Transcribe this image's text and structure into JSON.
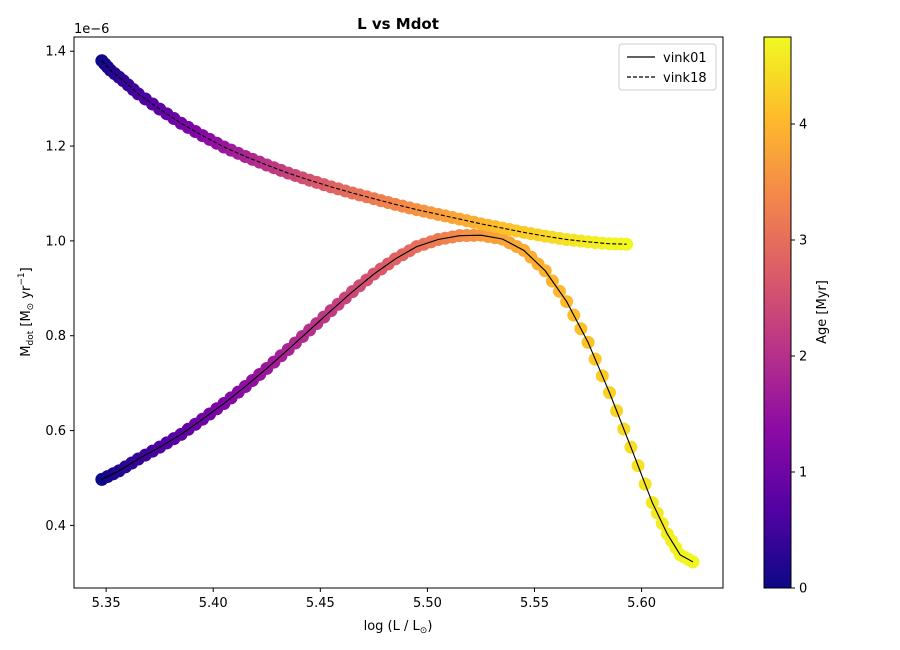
{
  "chart_data": {
    "type": "scatter",
    "title": "L vs Mdot",
    "xlabel": {
      "main": "log (L / L",
      "sub": "⊙",
      "tail": ")"
    },
    "ylabel": {
      "main": "M",
      "sub": "dot",
      "mid": " [M",
      "sub2": "⊙",
      "unit": " yr",
      "sup": "−1",
      "end": "]"
    },
    "y_offset_label": "1e−6",
    "xlim": [
      5.335,
      5.638
    ],
    "ylim": [
      0.268,
      1.43
    ],
    "xticks": [
      5.35,
      5.4,
      5.45,
      5.5,
      5.55,
      5.6
    ],
    "xtick_labels": [
      "5.35",
      "5.40",
      "5.45",
      "5.50",
      "5.55",
      "5.60"
    ],
    "yticks": [
      0.4,
      0.6,
      0.8,
      1.0,
      1.2,
      1.4
    ],
    "ytick_labels": [
      "0.4",
      "0.6",
      "0.8",
      "1.0",
      "1.2",
      "1.4"
    ],
    "legend": {
      "position": "top-right",
      "entries": [
        {
          "name": "vink01",
          "style": "solid"
        },
        {
          "name": "vink18",
          "style": "dashed"
        }
      ]
    },
    "colorbar": {
      "label": "Age [Myr]",
      "min": 0,
      "max": 4.75,
      "ticks": [
        0,
        1,
        2,
        3,
        4
      ],
      "tick_labels": [
        "0",
        "1",
        "2",
        "3",
        "4"
      ],
      "colormap": [
        "#0d0887",
        "#5302a3",
        "#8b0aa5",
        "#b83289",
        "#db5c68",
        "#f48849",
        "#febc2a",
        "#f0f921"
      ]
    },
    "series": [
      {
        "name": "vink01",
        "line_color": "#000000",
        "x": [
          5.348,
          5.356,
          5.365,
          5.375,
          5.385,
          5.395,
          5.405,
          5.415,
          5.425,
          5.435,
          5.445,
          5.455,
          5.465,
          5.475,
          5.485,
          5.495,
          5.505,
          5.515,
          5.525,
          5.535,
          5.545,
          5.555,
          5.565,
          5.575,
          5.585,
          5.595,
          5.605,
          5.612,
          5.618,
          5.624
        ],
        "y": [
          0.497,
          0.515,
          0.54,
          0.565,
          0.592,
          0.624,
          0.657,
          0.693,
          0.731,
          0.771,
          0.812,
          0.853,
          0.893,
          0.93,
          0.962,
          0.988,
          1.003,
          1.011,
          1.012,
          1.004,
          0.98,
          0.937,
          0.872,
          0.786,
          0.68,
          0.565,
          0.448,
          0.382,
          0.338,
          0.323
        ],
        "age": [
          0,
          0.2,
          0.4,
          0.6,
          0.8,
          1.0,
          1.2,
          1.4,
          1.6,
          1.8,
          2.0,
          2.2,
          2.4,
          2.6,
          2.8,
          3.0,
          3.2,
          3.4,
          3.6,
          3.75,
          3.85,
          3.95,
          4.05,
          4.15,
          4.3,
          4.45,
          4.55,
          4.62,
          4.68,
          4.72
        ]
      },
      {
        "name": "vink18",
        "line_color": "#000000",
        "x": [
          5.348,
          5.352,
          5.358,
          5.365,
          5.375,
          5.385,
          5.395,
          5.405,
          5.415,
          5.425,
          5.435,
          5.445,
          5.455,
          5.465,
          5.475,
          5.485,
          5.495,
          5.505,
          5.515,
          5.525,
          5.535,
          5.545,
          5.555,
          5.565,
          5.575,
          5.585,
          5.593
        ],
        "y": [
          1.38,
          1.36,
          1.338,
          1.31,
          1.278,
          1.248,
          1.222,
          1.198,
          1.178,
          1.16,
          1.143,
          1.128,
          1.114,
          1.101,
          1.089,
          1.077,
          1.066,
          1.056,
          1.046,
          1.036,
          1.027,
          1.018,
          1.01,
          1.003,
          0.998,
          0.994,
          0.993
        ],
        "age": [
          0,
          0.15,
          0.35,
          0.55,
          0.8,
          1.05,
          1.3,
          1.55,
          1.8,
          2.05,
          2.3,
          2.55,
          2.8,
          3.0,
          3.2,
          3.35,
          3.5,
          3.65,
          3.8,
          3.95,
          4.1,
          4.22,
          4.35,
          4.48,
          4.6,
          4.68,
          4.74
        ]
      }
    ]
  }
}
